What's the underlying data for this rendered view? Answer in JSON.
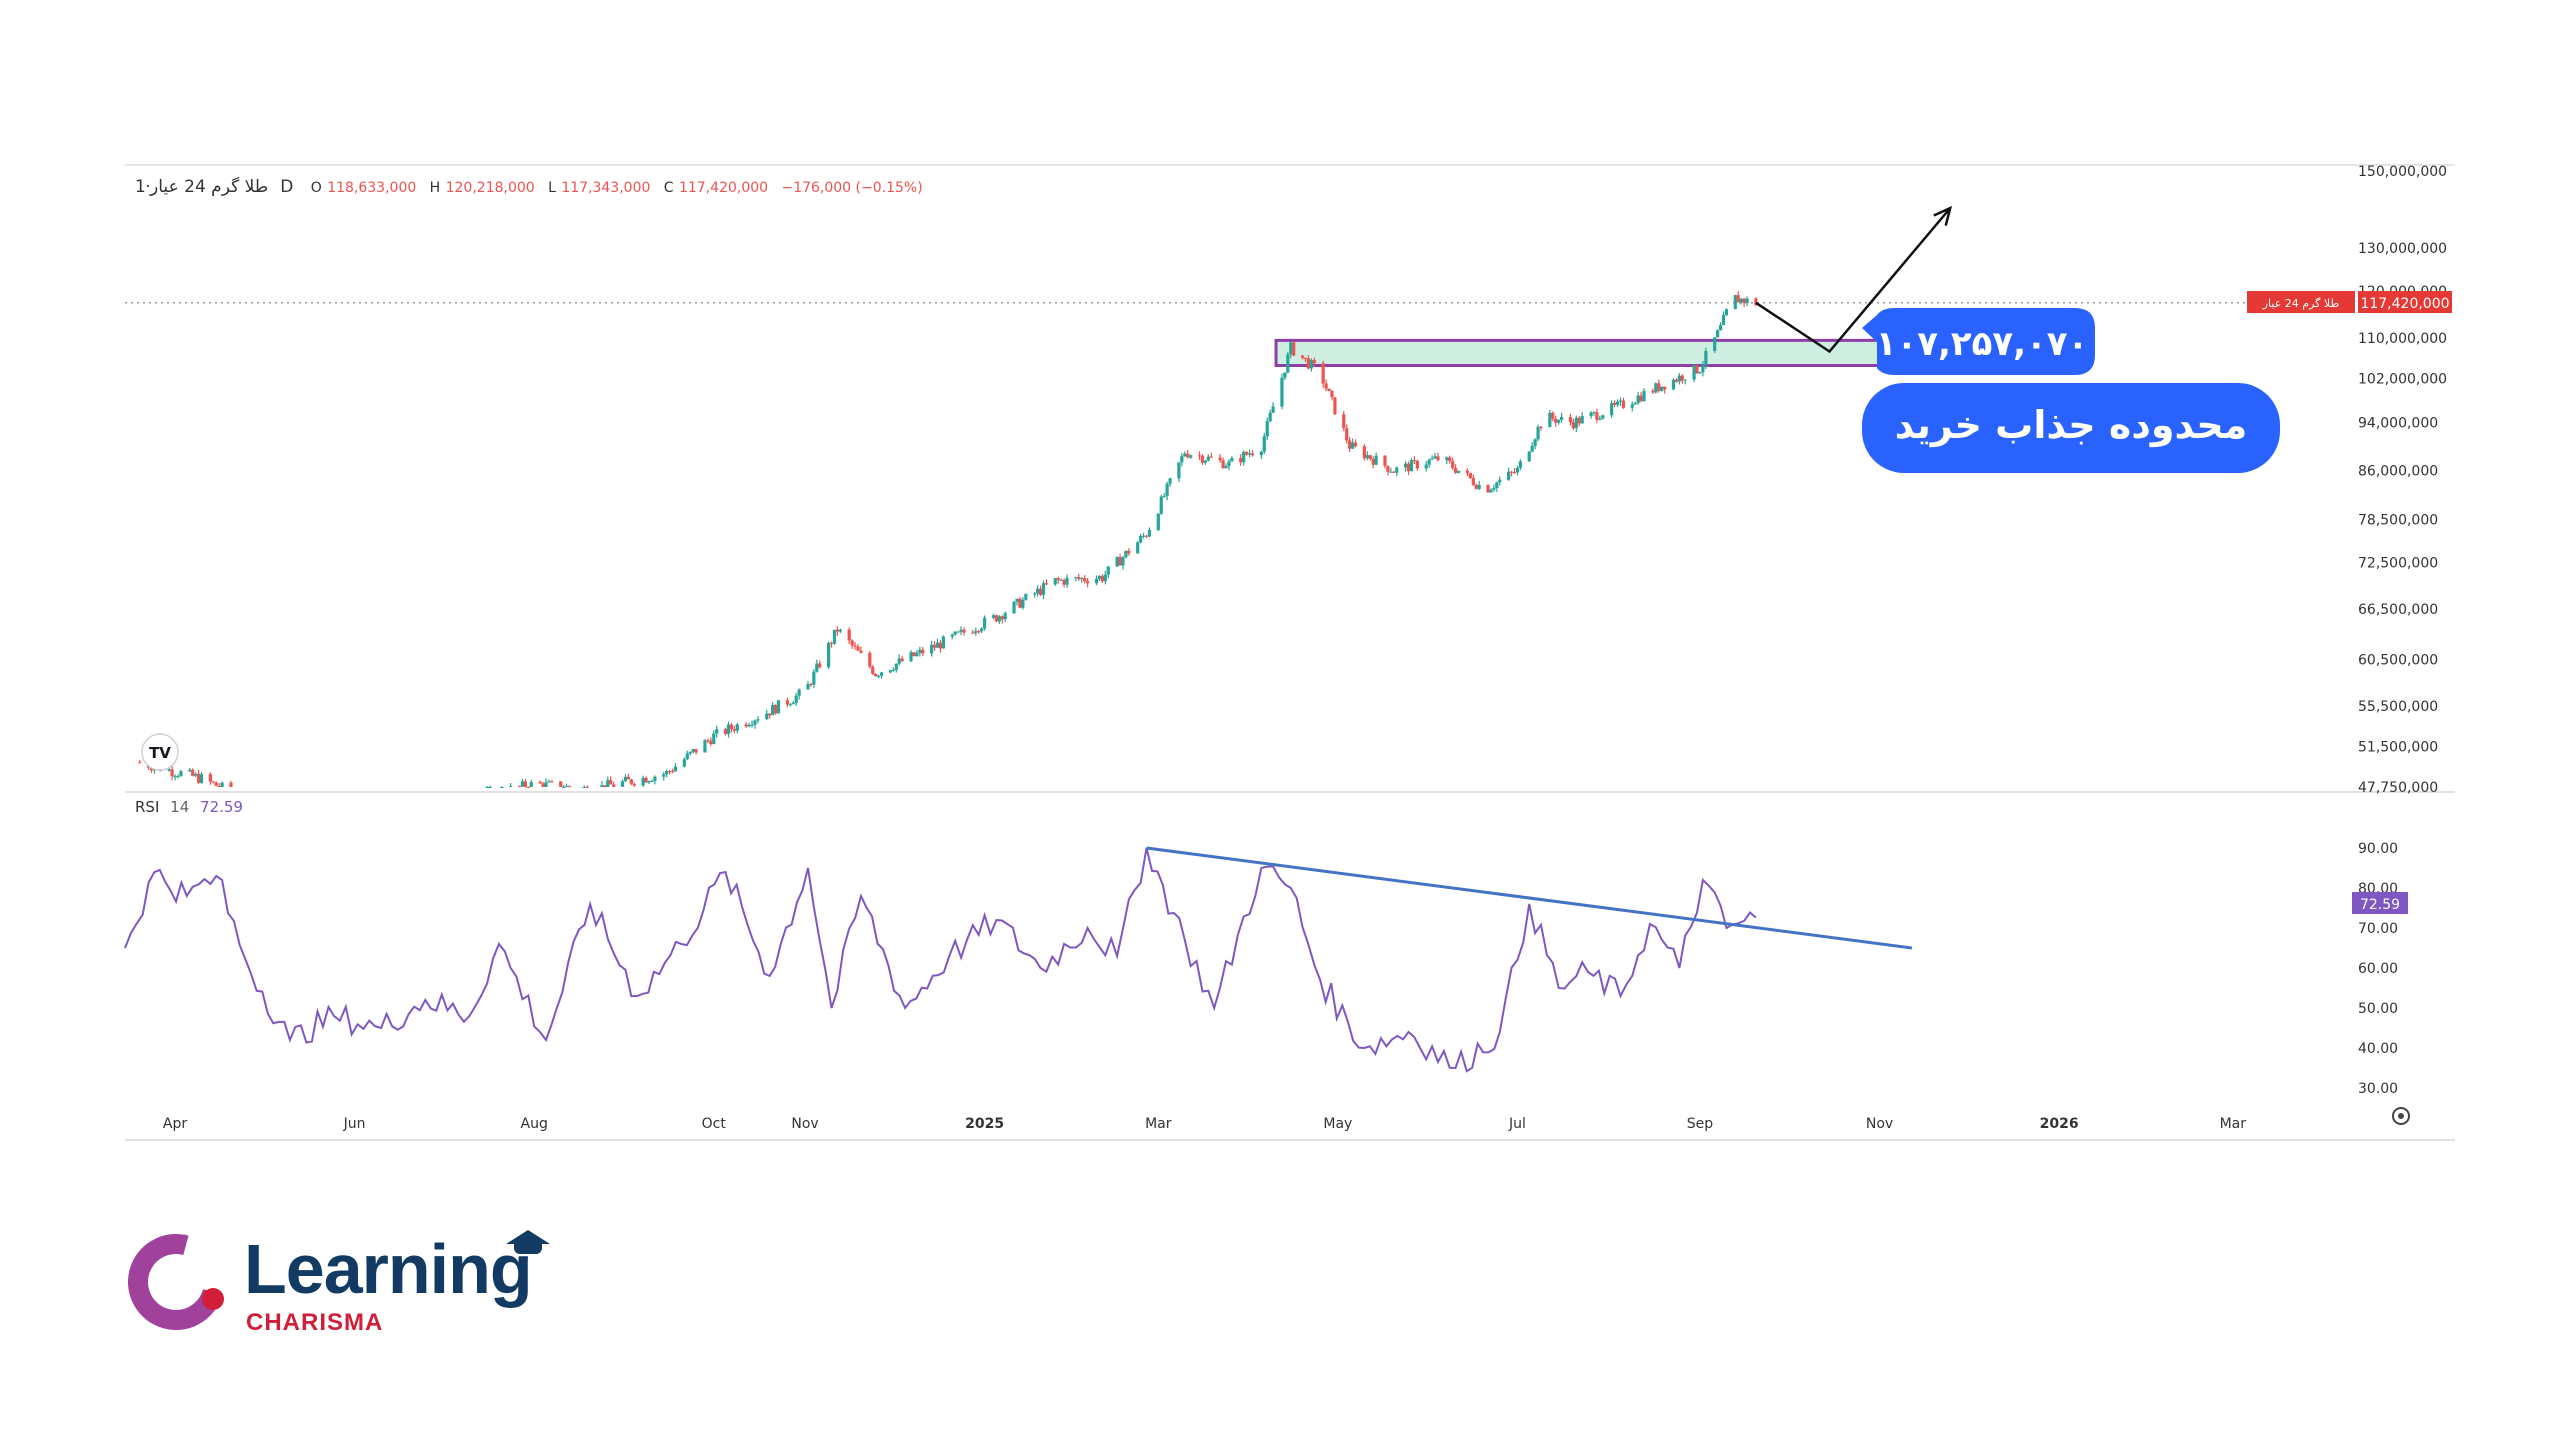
{
  "header": {
    "symbol": "طلا گرم 24 عیار",
    "interval": "1D",
    "sep": "·",
    "o_label": "O",
    "open": "118,633,000",
    "h_label": "H",
    "high": "120,218,000",
    "l_label": "L",
    "low": "117,343,000",
    "c_label": "C",
    "close": "117,420,000",
    "change": "−176,000 (−0.15%)"
  },
  "price_tag": {
    "symbol": "طلا گرم 24 عیار",
    "value": "117,420,000"
  },
  "rsi": {
    "label": "RSI",
    "length": "14",
    "value": "72.59"
  },
  "annotations": {
    "price_label": "۱۰۷,۲۵۷,۰۷۰",
    "zone_label": "محدوده جذاب خرید"
  },
  "logo": {
    "word": "Learning",
    "sub": "CHARISMA",
    "badge": "TV"
  },
  "colors": {
    "up": "#26a69a",
    "down": "#ef5350",
    "rsi_line": "#7e57c2",
    "trendline": "#4472c4",
    "zone_fill": "#cdeee0",
    "zone_border": "#8e3ea8",
    "callout": "#2962ff",
    "brand_purple": "#a0419b",
    "brand_navy": "#123a63",
    "brand_red": "#d11f3a"
  },
  "chart_data": [
    {
      "type": "candlestick",
      "title": "",
      "scale": "log",
      "y_ticks": [
        150000000,
        130000000,
        120000000,
        110000000,
        102000000,
        94000000,
        86000000,
        78500000,
        72500000,
        66500000,
        60500000,
        55500000,
        51500000,
        47750000
      ],
      "y_tick_labels": [
        "150,000,000",
        "130,000,000",
        "120,000,000",
        "110,000,000",
        "102,000,000",
        "94,000,000",
        "86,000,000",
        "78,500,000",
        "72,500,000",
        "66,500,000",
        "60,500,000",
        "55,500,000",
        "51,500,000",
        "47,750,000"
      ],
      "ylim": [
        47750000,
        150000000
      ],
      "x_labels": [
        "Apr",
        "Jun",
        "Aug",
        "Oct",
        "Nov",
        "2025",
        "Mar",
        "May",
        "Jul",
        "Sep",
        "Nov",
        "2026",
        "Mar"
      ],
      "x_label_dates": [
        "2024-04-01",
        "2024-06-01",
        "2024-08-01",
        "2024-10-01",
        "2024-11-01",
        "2025-01-01",
        "2025-03-01",
        "2025-05-01",
        "2025-07-01",
        "2025-09-01",
        "2025-11-01",
        "2026-01-01",
        "2026-03-01"
      ],
      "xlim": [
        "2024-03-15",
        "2026-04-20"
      ],
      "series_close": [
        [
          "2024-03-20",
          50000000
        ],
        [
          "2024-04-10",
          48500000
        ],
        [
          "2024-05-01",
          46000000
        ],
        [
          "2024-06-01",
          46500000
        ],
        [
          "2024-07-01",
          46200000
        ],
        [
          "2024-08-01",
          48000000
        ],
        [
          "2024-08-20",
          47500000
        ],
        [
          "2024-09-15",
          49000000
        ],
        [
          "2024-10-01",
          52500000
        ],
        [
          "2024-10-20",
          55000000
        ],
        [
          "2024-11-01",
          57000000
        ],
        [
          "2024-11-12",
          64000000
        ],
        [
          "2024-11-25",
          59000000
        ],
        [
          "2024-12-15",
          62000000
        ],
        [
          "2025-01-05",
          65500000
        ],
        [
          "2025-01-25",
          70000000
        ],
        [
          "2025-02-10",
          70500000
        ],
        [
          "2025-02-25",
          76500000
        ],
        [
          "2025-03-10",
          89000000
        ],
        [
          "2025-03-25",
          87000000
        ],
        [
          "2025-04-05",
          90000000
        ],
        [
          "2025-04-15",
          108000000
        ],
        [
          "2025-04-25",
          103000000
        ],
        [
          "2025-05-05",
          90000000
        ],
        [
          "2025-05-20",
          86000000
        ],
        [
          "2025-06-05",
          88000000
        ],
        [
          "2025-06-20",
          83000000
        ],
        [
          "2025-07-01",
          86000000
        ],
        [
          "2025-07-10",
          95000000
        ],
        [
          "2025-07-20",
          94000000
        ],
        [
          "2025-08-05",
          97000000
        ],
        [
          "2025-08-20",
          101000000
        ],
        [
          "2025-09-01",
          104000000
        ],
        [
          "2025-09-08",
          112000000
        ],
        [
          "2025-09-12",
          118500000
        ],
        [
          "2025-09-20",
          117420000
        ]
      ],
      "buy_zone": {
        "from": "2025-04-10",
        "to": "2025-11-05",
        "low": 104500000,
        "high": 109500000
      },
      "price_line": 117420000,
      "projection": [
        [
          "2025-09-20",
          117420000
        ],
        [
          "2025-10-15",
          107257070
        ],
        [
          "2025-11-25",
          140000000
        ]
      ]
    },
    {
      "type": "line",
      "title": "",
      "y_ticks": [
        90,
        80,
        70,
        60,
        50,
        40,
        30
      ],
      "y_tick_labels": [
        "90.00",
        "80.00",
        "70.00",
        "60.00",
        "50.00",
        "40.00",
        "30.00"
      ],
      "ylim": [
        27,
        97
      ],
      "series": [
        {
          "values": [
            [
              "2024-03-15",
              65
            ],
            [
              "2024-03-25",
              84
            ],
            [
              "2024-04-05",
              78
            ],
            [
              "2024-04-15",
              83
            ],
            [
              "2024-04-25",
              62
            ],
            [
              "2024-05-10",
              42
            ],
            [
              "2024-05-25",
              48
            ],
            [
              "2024-06-10",
              45
            ],
            [
              "2024-06-25",
              52
            ],
            [
              "2024-07-10",
              48
            ],
            [
              "2024-07-20",
              66
            ],
            [
              "2024-08-05",
              42
            ],
            [
              "2024-08-20",
              76
            ],
            [
              "2024-09-05",
              53
            ],
            [
              "2024-09-20",
              66
            ],
            [
              "2024-10-05",
              84
            ],
            [
              "2024-10-20",
              58
            ],
            [
              "2024-11-02",
              85
            ],
            [
              "2024-11-10",
              50
            ],
            [
              "2024-11-20",
              78
            ],
            [
              "2024-12-05",
              50
            ],
            [
              "2024-12-20",
              63
            ],
            [
              "2025-01-05",
              72
            ],
            [
              "2025-01-20",
              60
            ],
            [
              "2025-02-05",
              70
            ],
            [
              "2025-02-15",
              63
            ],
            [
              "2025-02-25",
              90
            ],
            [
              "2025-03-10",
              67
            ],
            [
              "2025-03-20",
              50
            ],
            [
              "2025-04-05",
              85
            ],
            [
              "2025-04-15",
              80
            ],
            [
              "2025-04-25",
              57
            ],
            [
              "2025-05-10",
              40
            ],
            [
              "2025-05-25",
              44
            ],
            [
              "2025-06-10",
              35
            ],
            [
              "2025-06-25",
              44
            ],
            [
              "2025-07-05",
              76
            ],
            [
              "2025-07-15",
              55
            ],
            [
              "2025-07-25",
              59
            ],
            [
              "2025-08-05",
              53
            ],
            [
              "2025-08-15",
              71
            ],
            [
              "2025-08-25",
              60
            ],
            [
              "2025-09-02",
              82
            ],
            [
              "2025-09-10",
              70
            ],
            [
              "2025-09-20",
              72.59
            ]
          ]
        }
      ],
      "trendline": [
        [
          "2025-02-25",
          90
        ],
        [
          "2025-11-12",
          65
        ]
      ]
    }
  ]
}
